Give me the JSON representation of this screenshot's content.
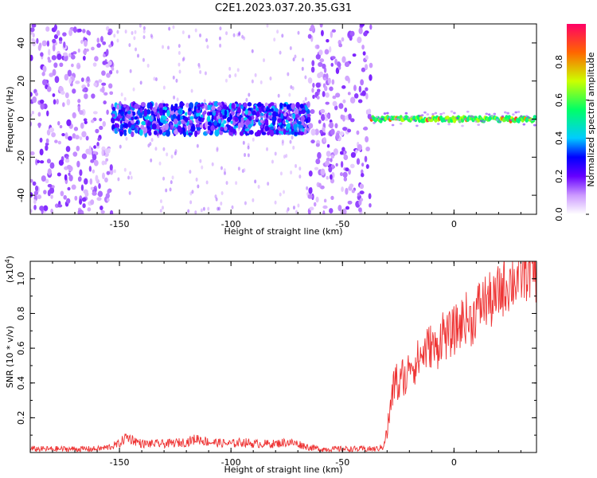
{
  "title": "C2E1.2023.037.20.35.G31",
  "colors": {
    "snr_line": "#ee3333",
    "axis": "#000000"
  },
  "chart_data": [
    {
      "type": "heatmap",
      "name": "spectrogram",
      "title": "C2E1.2023.037.20.35.G31",
      "xlabel": "Height of straight line (km)",
      "ylabel": "Frequency (Hz)",
      "xlim": [
        -190,
        37
      ],
      "ylim": [
        -50,
        50
      ],
      "x_ticks": [
        -150,
        -100,
        -50,
        0
      ],
      "y_ticks": [
        -40,
        -20,
        0,
        20,
        40
      ],
      "x_tick_labels": [
        "-150",
        "-100",
        "-50",
        "0"
      ],
      "y_tick_labels": [
        "-40",
        "-20",
        "0",
        "20",
        "40"
      ],
      "colorbar": {
        "label": "Normalized spectral amplitude",
        "range": [
          0,
          1
        ],
        "ticks": [
          0.0,
          0.2,
          0.4,
          0.6,
          0.8
        ],
        "tick_labels": [
          "0.0",
          "0.2",
          "0.4",
          "0.6",
          "0.8"
        ]
      },
      "regions": [
        {
          "x_from": -190,
          "x_to": -153,
          "f_from": -50,
          "f_to": 50,
          "amplitude": 0.15,
          "density": "high"
        },
        {
          "x_from": -153,
          "x_to": -65,
          "f_from": -8,
          "f_to": 8,
          "amplitude": 0.35,
          "density": "high"
        },
        {
          "x_from": -65,
          "x_to": -37,
          "f_from": -50,
          "f_to": 50,
          "amplitude": 0.15,
          "density": "high"
        },
        {
          "x_from": -37,
          "x_to": 37,
          "f_from": -3,
          "f_to": 3,
          "amplitude": 0.7,
          "density": "line"
        }
      ]
    },
    {
      "type": "line",
      "name": "snr",
      "xlabel": "Height of straight line (km)",
      "ylabel": "SNR (10 * v/v)",
      "y_multiplier": "(x10",
      "y_multiplier_exp": "4",
      "y_multiplier_close": ")",
      "xlim": [
        -190,
        37
      ],
      "ylim": [
        0,
        1.1
      ],
      "x_ticks": [
        -150,
        -100,
        -50,
        0
      ],
      "y_ticks": [
        0.2,
        0.4,
        0.6,
        0.8,
        1.0
      ],
      "x_tick_labels": [
        "-150",
        "-100",
        "-50",
        "0"
      ],
      "y_tick_labels": [
        "0.2",
        "0.4",
        "0.6",
        "0.8",
        "1.0"
      ],
      "series": [
        {
          "x": [
            -190,
            -180,
            -170,
            -160,
            -155,
            -150,
            -147,
            -145,
            -140,
            -130,
            -120,
            -115,
            -110,
            -100,
            -95,
            -90,
            -80,
            -75,
            -70,
            -65,
            -60,
            -50,
            -40,
            -35,
            -32,
            -30,
            -28,
            -26,
            -25,
            -23,
            -21,
            -20,
            -18,
            -15,
            -12,
            -10,
            -8,
            -5,
            -3,
            0,
            2,
            5,
            8,
            10,
            12,
            15,
            18,
            20,
            22,
            25,
            28,
            30,
            32,
            35,
            37
          ],
          "y": [
            0.02,
            0.02,
            0.02,
            0.02,
            0.03,
            0.05,
            0.09,
            0.08,
            0.05,
            0.05,
            0.06,
            0.08,
            0.06,
            0.05,
            0.06,
            0.05,
            0.05,
            0.06,
            0.05,
            0.03,
            0.02,
            0.02,
            0.02,
            0.02,
            0.03,
            0.12,
            0.3,
            0.45,
            0.35,
            0.45,
            0.4,
            0.55,
            0.5,
            0.55,
            0.6,
            0.62,
            0.58,
            0.7,
            0.66,
            0.7,
            0.72,
            0.78,
            0.75,
            0.82,
            0.85,
            0.88,
            0.86,
            0.92,
            0.95,
            0.98,
            1.0,
            1.02,
            1.05,
            1.06,
            1.04
          ]
        }
      ]
    }
  ]
}
